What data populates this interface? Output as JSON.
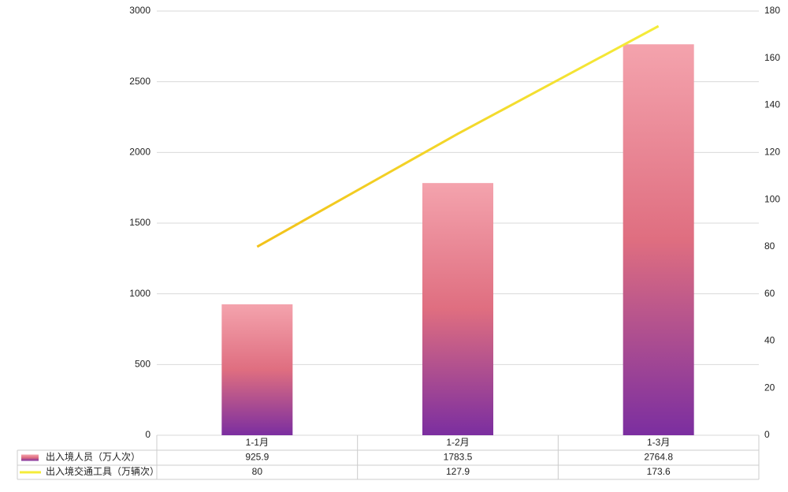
{
  "chart_data": {
    "type": "bar",
    "categories": [
      "1-1月",
      "1-2月",
      "1-3月"
    ],
    "series": [
      {
        "name": "出入境人员（万人次）",
        "type": "bar",
        "color": [
          "#f4a3ad",
          "#df6e80",
          "#7b2ea0"
        ],
        "values": [
          925.9,
          1783.5,
          2764.8
        ]
      },
      {
        "name": "出入境交通工具（万辆次）",
        "type": "line",
        "axis": "y2",
        "color": [
          "#f2c21a",
          "#f4ec3a"
        ],
        "values": [
          80,
          127.9,
          173.6
        ]
      }
    ],
    "ylim": [
      0,
      3000
    ],
    "yticks": [
      0,
      500,
      1000,
      1500,
      2000,
      2500,
      3000
    ],
    "y2lim": [
      0,
      180
    ],
    "y2ticks": [
      0,
      20,
      40,
      60,
      80,
      100,
      120,
      140,
      160,
      180
    ],
    "grid": true,
    "legend": "bottom-table"
  }
}
